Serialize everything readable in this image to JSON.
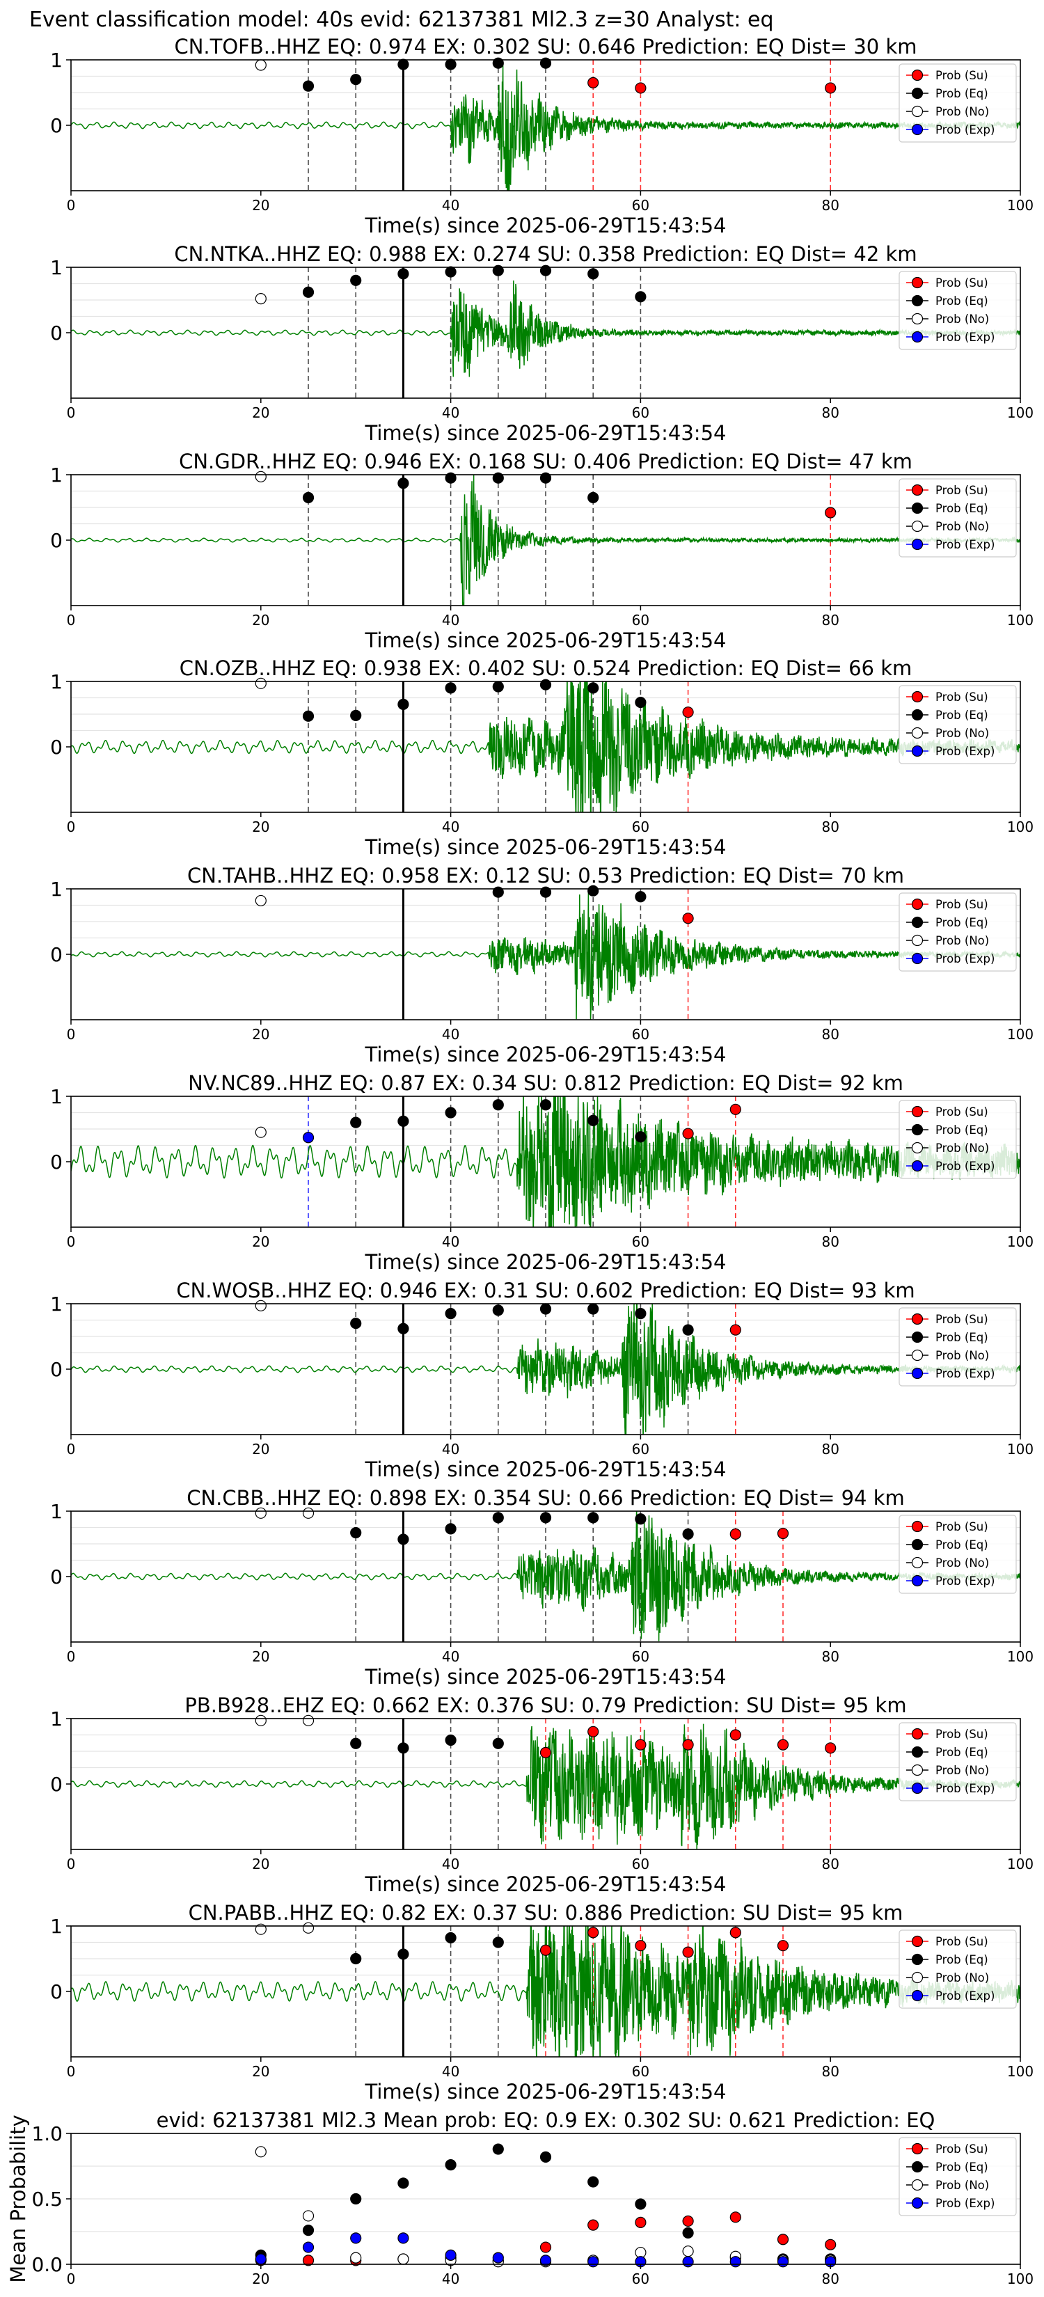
{
  "figure": {
    "title": "Event classification model: 40s evid: 62137381 Ml2.3 z=30 Analyst: eq"
  },
  "legend_labels": [
    "Prob (Su)",
    "Prob (Eq)",
    "Prob (No)",
    "Prob (Exp)"
  ],
  "colors": {
    "su": "#ff0000",
    "eq": "#000000",
    "no": "#ffffff",
    "exp": "#0000ff",
    "waveform": "#008000",
    "su_line": "#ff0000",
    "eq_line": "#000000",
    "exp_line": "#0000ff"
  },
  "chart_data": [
    {
      "type": "line",
      "title": "CN.TOFB..HHZ   EQ: 0.974  EX: 0.302  SU: 0.646   Prediction: EQ    Dist= 30 km",
      "xlabel": "Time(s) since 2025-06-29T15:43:54",
      "xlim": [
        0,
        100
      ],
      "xticks": [
        0,
        20,
        40,
        60,
        80,
        100
      ],
      "ylim": [
        -1,
        1
      ],
      "yticks": [
        0,
        1
      ],
      "origin_time": 35,
      "wave": {
        "amp": 0.05,
        "onsets": [
          {
            "t": 40,
            "a": 0.45,
            "d": 2.5
          },
          {
            "t": 45,
            "a": 0.9,
            "d": 1.2
          }
        ],
        "end_amp": 0.04,
        "decay": 8
      },
      "points": {
        "no": [
          {
            "x": 20,
            "y": 0.92
          }
        ],
        "eq": [
          {
            "x": 25,
            "y": 0.6
          },
          {
            "x": 30,
            "y": 0.7
          },
          {
            "x": 35,
            "y": 0.93
          },
          {
            "x": 40,
            "y": 0.93
          },
          {
            "x": 45,
            "y": 0.95
          },
          {
            "x": 50,
            "y": 0.95
          }
        ],
        "su": [
          {
            "x": 55,
            "y": 0.65
          },
          {
            "x": 60,
            "y": 0.57
          },
          {
            "x": 80,
            "y": 0.57
          }
        ],
        "exp": []
      }
    },
    {
      "type": "line",
      "title": "CN.NTKA..HHZ   EQ: 0.988  EX: 0.274  SU: 0.358   Prediction: EQ    Dist= 42 km",
      "xlabel": "Time(s) since 2025-06-29T15:43:54",
      "xlim": [
        0,
        100
      ],
      "xticks": [
        0,
        20,
        40,
        60,
        80,
        100
      ],
      "ylim": [
        -1,
        1
      ],
      "yticks": [
        0,
        1
      ],
      "origin_time": 35,
      "wave": {
        "amp": 0.04,
        "onsets": [
          {
            "t": 40,
            "a": 0.75,
            "d": 1.5
          },
          {
            "t": 46,
            "a": 0.55,
            "d": 1.0
          }
        ],
        "end_amp": 0.03,
        "decay": 6
      },
      "points": {
        "no": [
          {
            "x": 20,
            "y": 0.52
          }
        ],
        "eq": [
          {
            "x": 25,
            "y": 0.62
          },
          {
            "x": 30,
            "y": 0.8
          },
          {
            "x": 35,
            "y": 0.9
          },
          {
            "x": 40,
            "y": 0.93
          },
          {
            "x": 45,
            "y": 0.95
          },
          {
            "x": 50,
            "y": 0.95
          },
          {
            "x": 55,
            "y": 0.9
          },
          {
            "x": 60,
            "y": 0.55
          }
        ],
        "su": [],
        "exp": []
      }
    },
    {
      "type": "line",
      "title": "CN.GDR..HHZ   EQ: 0.946  EX: 0.168  SU: 0.406   Prediction: EQ    Dist= 47 km",
      "xlabel": "Time(s) since 2025-06-29T15:43:54",
      "xlim": [
        0,
        100
      ],
      "xticks": [
        0,
        20,
        40,
        60,
        80,
        100
      ],
      "ylim": [
        -1,
        1
      ],
      "yticks": [
        0,
        1
      ],
      "origin_time": 35,
      "wave": {
        "amp": 0.03,
        "onsets": [
          {
            "t": 41,
            "a": 1.0,
            "d": 1.0
          }
        ],
        "end_amp": 0.03,
        "decay": 6
      },
      "points": {
        "no": [
          {
            "x": 20,
            "y": 0.97
          }
        ],
        "eq": [
          {
            "x": 25,
            "y": 0.65
          },
          {
            "x": 35,
            "y": 0.87
          },
          {
            "x": 40,
            "y": 0.95
          },
          {
            "x": 45,
            "y": 0.95
          },
          {
            "x": 50,
            "y": 0.95
          },
          {
            "x": 55,
            "y": 0.65
          }
        ],
        "su": [
          {
            "x": 80,
            "y": 0.42
          }
        ],
        "exp": []
      }
    },
    {
      "type": "line",
      "title": "CN.OZB..HHZ   EQ: 0.938  EX: 0.402  SU: 0.524   Prediction: EQ    Dist= 66 km",
      "xlabel": "Time(s) since 2025-06-29T15:43:54",
      "xlim": [
        0,
        100
      ],
      "xticks": [
        0,
        20,
        40,
        60,
        80,
        100
      ],
      "ylim": [
        -1,
        1
      ],
      "yticks": [
        0,
        1
      ],
      "origin_time": 35,
      "wave": {
        "amp": 0.1,
        "onsets": [
          {
            "t": 44,
            "a": 0.35,
            "d": 6
          },
          {
            "t": 52,
            "a": 1.0,
            "d": 3
          }
        ],
        "end_amp": 0.06,
        "decay": 18
      },
      "points": {
        "no": [
          {
            "x": 20,
            "y": 0.97
          }
        ],
        "eq": [
          {
            "x": 25,
            "y": 0.47
          },
          {
            "x": 30,
            "y": 0.48
          },
          {
            "x": 35,
            "y": 0.65
          },
          {
            "x": 40,
            "y": 0.9
          },
          {
            "x": 45,
            "y": 0.92
          },
          {
            "x": 50,
            "y": 0.95
          },
          {
            "x": 55,
            "y": 0.9
          },
          {
            "x": 60,
            "y": 0.68
          }
        ],
        "su": [
          {
            "x": 65,
            "y": 0.53
          }
        ],
        "exp": []
      }
    },
    {
      "type": "line",
      "title": "CN.TAHB..HHZ   EQ: 0.958  EX: 0.12  SU: 0.53   Prediction: EQ    Dist= 70 km",
      "xlabel": "Time(s) since 2025-06-29T15:43:54",
      "xlim": [
        0,
        100
      ],
      "xticks": [
        0,
        20,
        40,
        60,
        80,
        100
      ],
      "ylim": [
        -1,
        1
      ],
      "yticks": [
        0,
        1
      ],
      "origin_time": 35,
      "wave": {
        "amp": 0.04,
        "onsets": [
          {
            "t": 44,
            "a": 0.25,
            "d": 4
          },
          {
            "t": 53,
            "a": 0.9,
            "d": 2
          }
        ],
        "end_amp": 0.05,
        "decay": 15
      },
      "points": {
        "no": [
          {
            "x": 20,
            "y": 0.82
          }
        ],
        "eq": [
          {
            "x": 45,
            "y": 0.95
          },
          {
            "x": 50,
            "y": 0.95
          },
          {
            "x": 55,
            "y": 0.97
          },
          {
            "x": 60,
            "y": 0.88
          }
        ],
        "su": [
          {
            "x": 65,
            "y": 0.55
          }
        ],
        "exp": []
      }
    },
    {
      "type": "line",
      "title": "NV.NC89..HHZ   EQ: 0.87  EX: 0.34  SU: 0.812   Prediction: EQ    Dist= 92 km",
      "xlabel": "Time(s) since 2025-06-29T15:43:54",
      "xlim": [
        0,
        100
      ],
      "xticks": [
        0,
        20,
        40,
        60,
        80,
        100
      ],
      "ylim": [
        -1,
        1
      ],
      "yticks": [
        0,
        1
      ],
      "origin_time": 35,
      "wave": {
        "amp": 0.25,
        "onsets": [
          {
            "t": 47,
            "a": 1.0,
            "d": 1.5
          },
          {
            "t": 50,
            "a": 0.5,
            "d": 3
          }
        ],
        "end_amp": 0.25,
        "decay": 20
      },
      "points": {
        "no": [
          {
            "x": 20,
            "y": 0.45
          }
        ],
        "eq": [
          {
            "x": 30,
            "y": 0.6
          },
          {
            "x": 35,
            "y": 0.62
          },
          {
            "x": 40,
            "y": 0.75
          },
          {
            "x": 45,
            "y": 0.87
          },
          {
            "x": 50,
            "y": 0.87
          },
          {
            "x": 55,
            "y": 0.63
          },
          {
            "x": 60,
            "y": 0.38
          }
        ],
        "su": [
          {
            "x": 65,
            "y": 0.43
          },
          {
            "x": 70,
            "y": 0.8
          }
        ],
        "exp": [
          {
            "x": 25,
            "y": 0.37
          }
        ]
      }
    },
    {
      "type": "line",
      "title": "CN.WOSB..HHZ   EQ: 0.946  EX: 0.31  SU: 0.602   Prediction: EQ    Dist= 93 km",
      "xlabel": "Time(s) since 2025-06-29T15:43:54",
      "xlim": [
        0,
        100
      ],
      "xticks": [
        0,
        20,
        40,
        60,
        80,
        100
      ],
      "ylim": [
        -1,
        1
      ],
      "yticks": [
        0,
        1
      ],
      "origin_time": 35,
      "wave": {
        "amp": 0.05,
        "onsets": [
          {
            "t": 47,
            "a": 0.35,
            "d": 6
          },
          {
            "t": 58,
            "a": 0.95,
            "d": 3
          }
        ],
        "end_amp": 0.05,
        "decay": 12
      },
      "points": {
        "no": [
          {
            "x": 20,
            "y": 0.97
          }
        ],
        "eq": [
          {
            "x": 30,
            "y": 0.7
          },
          {
            "x": 35,
            "y": 0.62
          },
          {
            "x": 40,
            "y": 0.85
          },
          {
            "x": 45,
            "y": 0.9
          },
          {
            "x": 50,
            "y": 0.92
          },
          {
            "x": 55,
            "y": 0.92
          },
          {
            "x": 60,
            "y": 0.85
          },
          {
            "x": 65,
            "y": 0.6
          }
        ],
        "su": [
          {
            "x": 70,
            "y": 0.6
          }
        ],
        "exp": []
      }
    },
    {
      "type": "line",
      "title": "CN.CBB..HHZ   EQ: 0.898  EX: 0.354  SU: 0.66   Prediction: EQ    Dist= 94 km",
      "xlabel": "Time(s) since 2025-06-29T15:43:54",
      "xlim": [
        0,
        100
      ],
      "xticks": [
        0,
        20,
        40,
        60,
        80,
        100
      ],
      "ylim": [
        -1,
        1
      ],
      "yticks": [
        0,
        1
      ],
      "origin_time": 35,
      "wave": {
        "amp": 0.05,
        "onsets": [
          {
            "t": 47,
            "a": 0.4,
            "d": 8
          },
          {
            "t": 59,
            "a": 0.95,
            "d": 2.5
          }
        ],
        "end_amp": 0.05,
        "decay": 12
      },
      "points": {
        "no": [
          {
            "x": 20,
            "y": 0.97
          },
          {
            "x": 25,
            "y": 0.97
          }
        ],
        "eq": [
          {
            "x": 30,
            "y": 0.67
          },
          {
            "x": 35,
            "y": 0.57
          },
          {
            "x": 40,
            "y": 0.73
          },
          {
            "x": 45,
            "y": 0.9
          },
          {
            "x": 50,
            "y": 0.9
          },
          {
            "x": 55,
            "y": 0.9
          },
          {
            "x": 60,
            "y": 0.88
          },
          {
            "x": 65,
            "y": 0.65
          }
        ],
        "su": [
          {
            "x": 70,
            "y": 0.65
          },
          {
            "x": 75,
            "y": 0.66
          }
        ],
        "exp": []
      }
    },
    {
      "type": "line",
      "title": "PB.B928..EHZ   EQ: 0.662  EX: 0.376  SU: 0.79   Prediction: SU    Dist= 95 km",
      "xlabel": "Time(s) since 2025-06-29T15:43:54",
      "xlim": [
        0,
        100
      ],
      "xticks": [
        0,
        20,
        40,
        60,
        80,
        100
      ],
      "ylim": [
        -1,
        1
      ],
      "yticks": [
        0,
        1
      ],
      "origin_time": 35,
      "wave": {
        "amp": 0.05,
        "onsets": [
          {
            "t": 48,
            "a": 0.8,
            "d": 12
          },
          {
            "t": 64,
            "a": 0.6,
            "d": 4
          }
        ],
        "end_amp": 0.06,
        "decay": 14
      },
      "points": {
        "no": [
          {
            "x": 20,
            "y": 0.97
          },
          {
            "x": 25,
            "y": 0.97
          }
        ],
        "eq": [
          {
            "x": 30,
            "y": 0.62
          },
          {
            "x": 35,
            "y": 0.55
          },
          {
            "x": 40,
            "y": 0.67
          },
          {
            "x": 45,
            "y": 0.62
          }
        ],
        "su": [
          {
            "x": 50,
            "y": 0.48
          },
          {
            "x": 55,
            "y": 0.8
          },
          {
            "x": 60,
            "y": 0.6
          },
          {
            "x": 65,
            "y": 0.6
          },
          {
            "x": 70,
            "y": 0.75
          },
          {
            "x": 75,
            "y": 0.6
          },
          {
            "x": 80,
            "y": 0.55
          }
        ],
        "exp": []
      }
    },
    {
      "type": "line",
      "title": "CN.PABB..HHZ   EQ: 0.82  EX: 0.37  SU: 0.886   Prediction: SU    Dist= 95 km",
      "xlabel": "Time(s) since 2025-06-29T15:43:54",
      "xlim": [
        0,
        100
      ],
      "xticks": [
        0,
        20,
        40,
        60,
        80,
        100
      ],
      "ylim": [
        -1,
        1
      ],
      "yticks": [
        0,
        1
      ],
      "origin_time": 35,
      "wave": {
        "amp": 0.15,
        "onsets": [
          {
            "t": 48,
            "a": 1.0,
            "d": 10
          },
          {
            "t": 65,
            "a": 0.5,
            "d": 5
          }
        ],
        "end_amp": 0.1,
        "decay": 16
      },
      "points": {
        "no": [
          {
            "x": 20,
            "y": 0.95
          },
          {
            "x": 25,
            "y": 0.97
          }
        ],
        "eq": [
          {
            "x": 30,
            "y": 0.5
          },
          {
            "x": 35,
            "y": 0.57
          },
          {
            "x": 40,
            "y": 0.82
          },
          {
            "x": 45,
            "y": 0.75
          }
        ],
        "su": [
          {
            "x": 50,
            "y": 0.63
          },
          {
            "x": 55,
            "y": 0.9
          },
          {
            "x": 60,
            "y": 0.7
          },
          {
            "x": 65,
            "y": 0.6
          },
          {
            "x": 70,
            "y": 0.9
          },
          {
            "x": 75,
            "y": 0.7
          }
        ],
        "exp": []
      }
    },
    {
      "type": "scatter",
      "title": "evid: 62137381  Ml2.3   Mean prob:   EQ: 0.9  EX: 0.302  SU: 0.621   Prediction: EQ",
      "xlabel": "",
      "ylabel": "Mean Probability",
      "xlim": [
        0,
        100
      ],
      "xticks": [
        0,
        20,
        40,
        60,
        80,
        100
      ],
      "ylim": [
        0,
        1
      ],
      "yticks": [
        0.0,
        0.5,
        1.0
      ],
      "points": {
        "no": [
          {
            "x": 20,
            "y": 0.86
          },
          {
            "x": 25,
            "y": 0.37
          },
          {
            "x": 30,
            "y": 0.05
          },
          {
            "x": 35,
            "y": 0.04
          },
          {
            "x": 40,
            "y": 0.03
          },
          {
            "x": 45,
            "y": 0.02
          },
          {
            "x": 50,
            "y": 0.02
          },
          {
            "x": 55,
            "y": 0.03
          },
          {
            "x": 60,
            "y": 0.09
          },
          {
            "x": 65,
            "y": 0.1
          },
          {
            "x": 70,
            "y": 0.06
          },
          {
            "x": 75,
            "y": 0.03
          },
          {
            "x": 80,
            "y": 0.03
          }
        ],
        "eq": [
          {
            "x": 20,
            "y": 0.07
          },
          {
            "x": 25,
            "y": 0.26
          },
          {
            "x": 30,
            "y": 0.5
          },
          {
            "x": 35,
            "y": 0.62
          },
          {
            "x": 40,
            "y": 0.76
          },
          {
            "x": 45,
            "y": 0.88
          },
          {
            "x": 50,
            "y": 0.82
          },
          {
            "x": 55,
            "y": 0.63
          },
          {
            "x": 60,
            "y": 0.46
          },
          {
            "x": 65,
            "y": 0.24
          },
          {
            "x": 70,
            "y": 0.05
          },
          {
            "x": 75,
            "y": 0.04
          },
          {
            "x": 80,
            "y": 0.04
          }
        ],
        "su": [
          {
            "x": 20,
            "y": 0.03
          },
          {
            "x": 25,
            "y": 0.03
          },
          {
            "x": 30,
            "y": 0.03
          },
          {
            "x": 35,
            "y": 0.04
          },
          {
            "x": 40,
            "y": 0.05
          },
          {
            "x": 45,
            "y": 0.03
          },
          {
            "x": 50,
            "y": 0.13
          },
          {
            "x": 55,
            "y": 0.3
          },
          {
            "x": 60,
            "y": 0.32
          },
          {
            "x": 65,
            "y": 0.33
          },
          {
            "x": 70,
            "y": 0.36
          },
          {
            "x": 75,
            "y": 0.19
          },
          {
            "x": 80,
            "y": 0.15
          }
        ],
        "exp": [
          {
            "x": 20,
            "y": 0.04
          },
          {
            "x": 25,
            "y": 0.13
          },
          {
            "x": 30,
            "y": 0.2
          },
          {
            "x": 35,
            "y": 0.2
          },
          {
            "x": 40,
            "y": 0.07
          },
          {
            "x": 45,
            "y": 0.05
          },
          {
            "x": 50,
            "y": 0.03
          },
          {
            "x": 55,
            "y": 0.02
          },
          {
            "x": 60,
            "y": 0.02
          },
          {
            "x": 65,
            "y": 0.02
          },
          {
            "x": 70,
            "y": 0.02
          },
          {
            "x": 75,
            "y": 0.02
          },
          {
            "x": 80,
            "y": 0.02
          }
        ]
      }
    }
  ]
}
